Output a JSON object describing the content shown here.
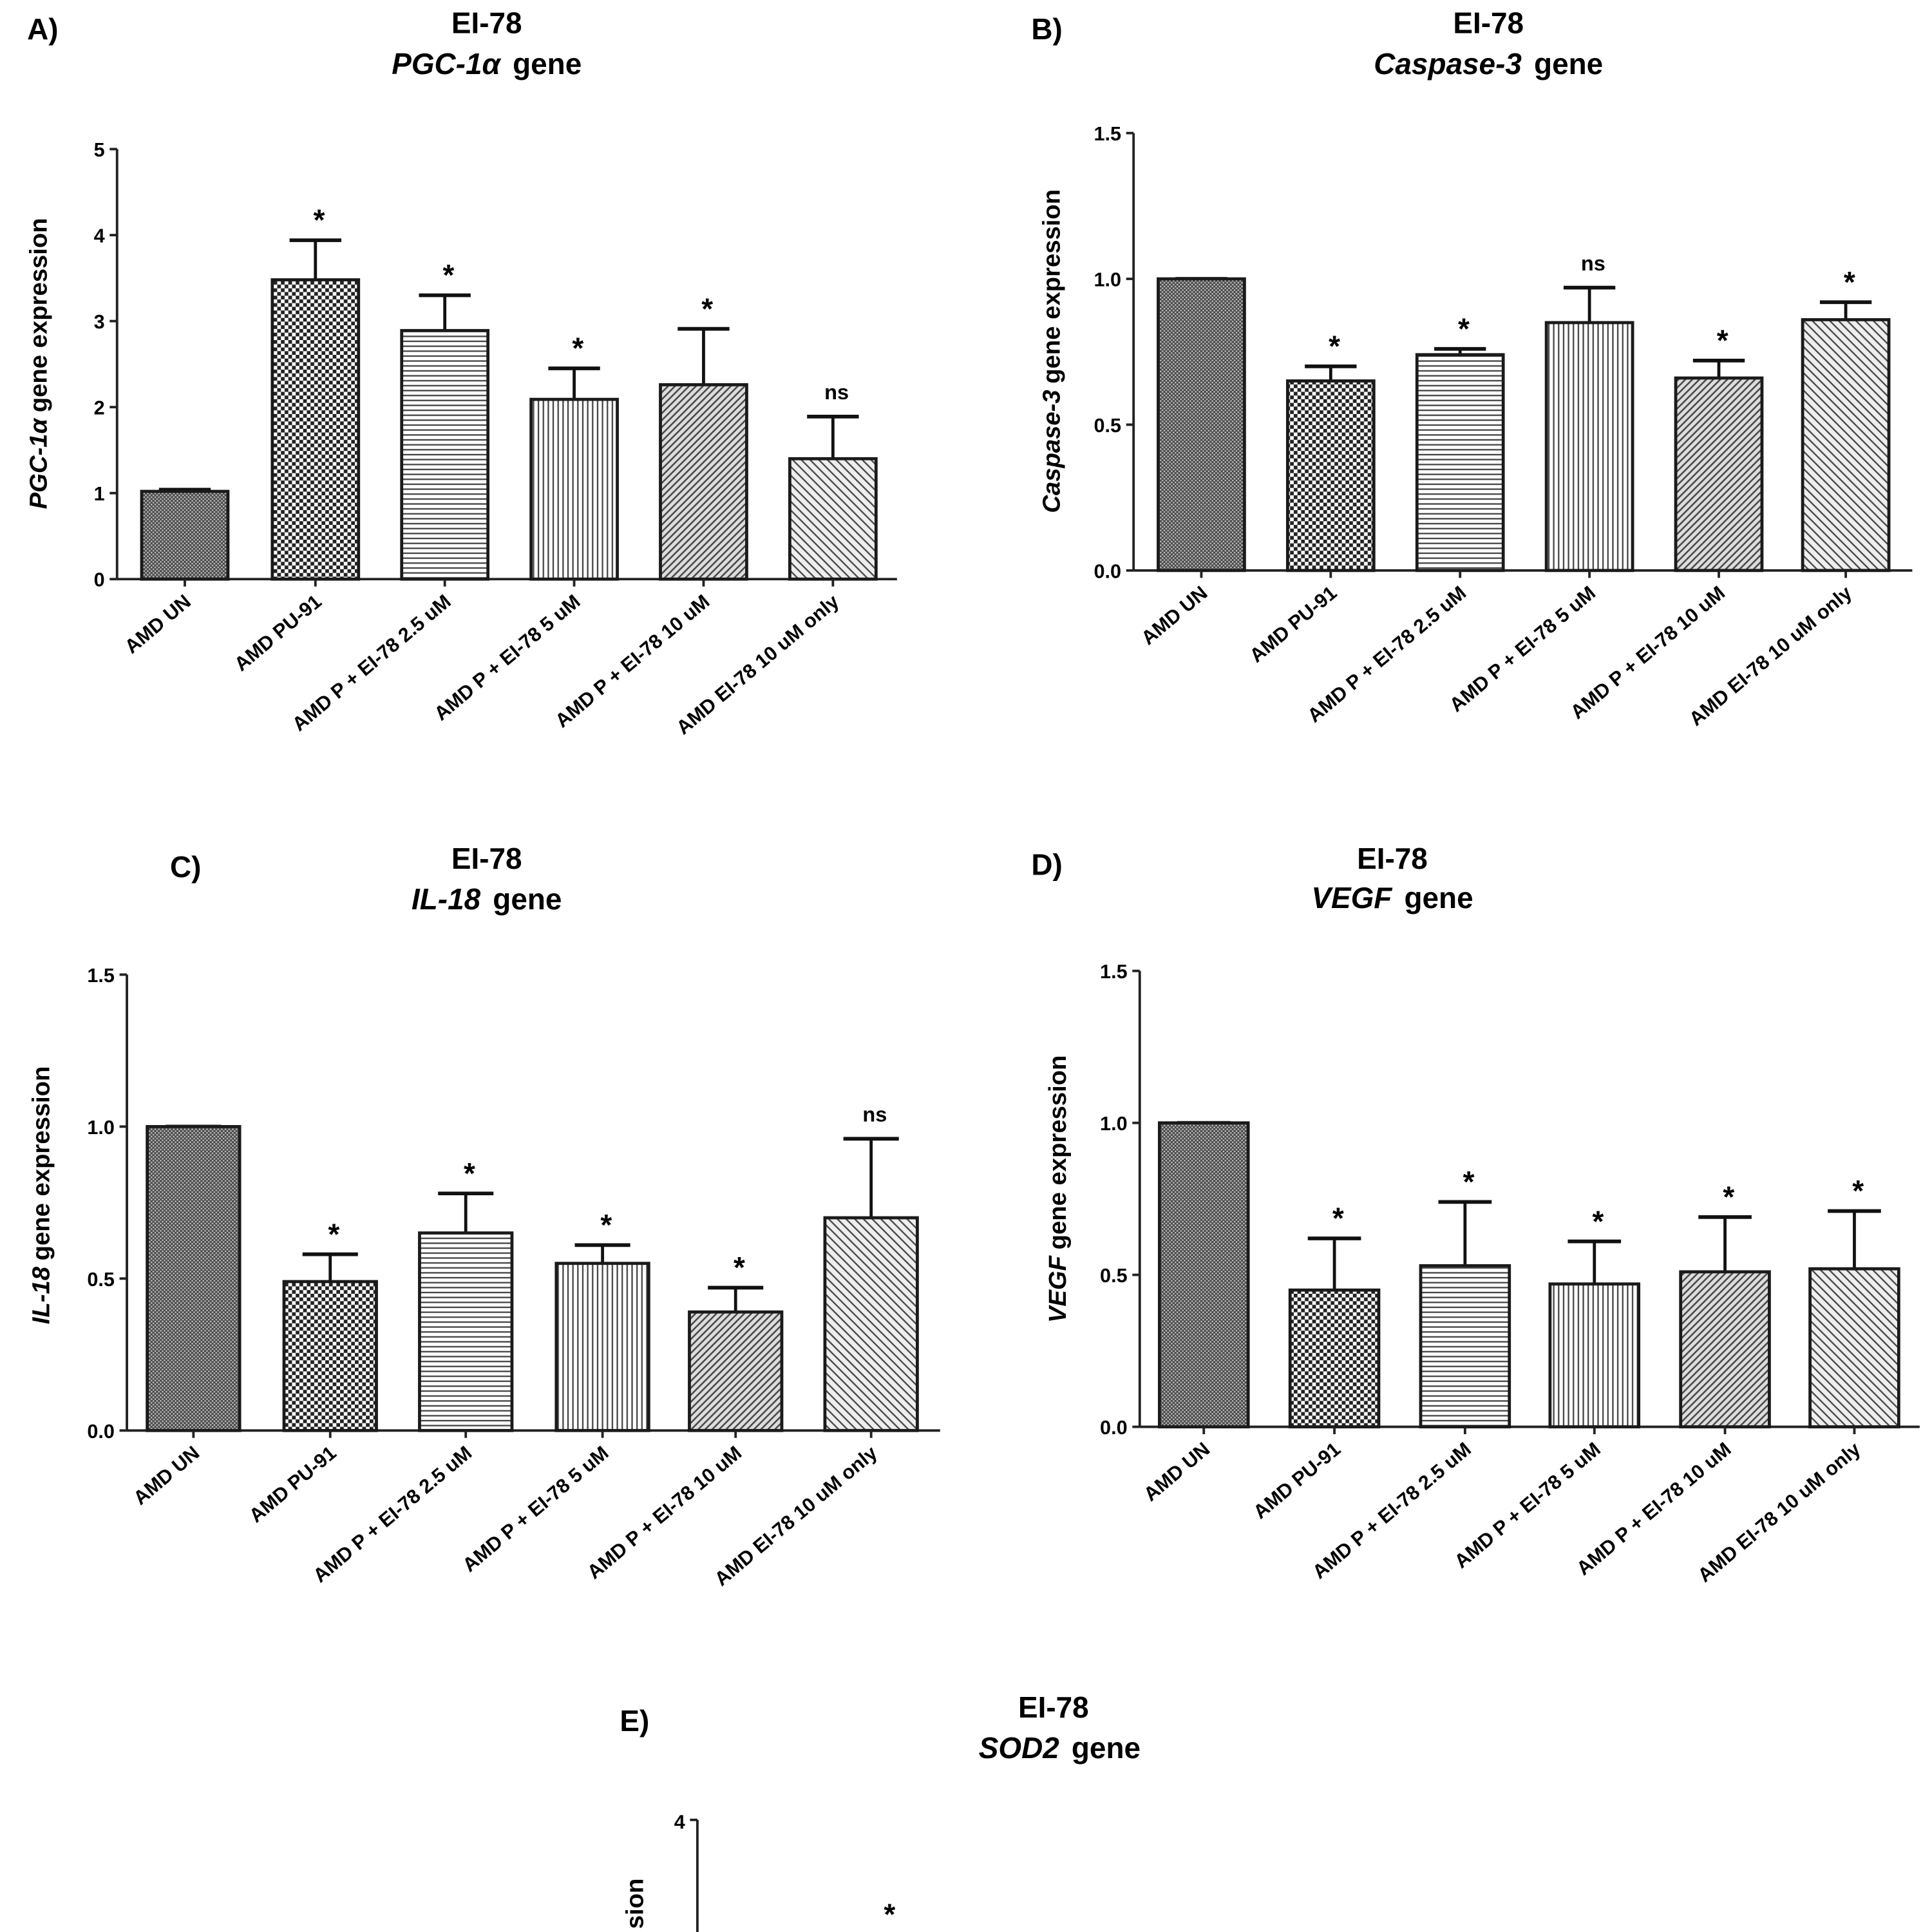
{
  "chart_data": [
    {
      "panel_label": "A)",
      "type": "bar",
      "title": "EI-78",
      "subtitle_gene": "PGC-1α",
      "subtitle_rest": "gene",
      "ylabel_gene": "PGC-1α",
      "ylabel_rest": "gene expression",
      "ylim": [
        0,
        5
      ],
      "yticks": [
        "0",
        "1",
        "2",
        "3",
        "4",
        "5"
      ],
      "grid": false,
      "categories": [
        "AMD UN",
        "AMD PU-91",
        "AMD P + EI-78 2.5 uM",
        "AMD P + EI-78 5 uM",
        "AMD P + EI-78 10 uM",
        "AMD EI-78 10 uM only"
      ],
      "values": [
        1.02,
        3.48,
        2.89,
        2.09,
        2.26,
        1.4
      ],
      "error_upper": [
        1.04,
        3.94,
        3.3,
        2.45,
        2.91,
        1.89
      ],
      "annotations": [
        "",
        "*",
        "*",
        "*",
        "*",
        "ns"
      ]
    },
    {
      "panel_label": "B)",
      "type": "bar",
      "title": "EI-78",
      "subtitle_gene": "Caspase-3",
      "subtitle_rest": "gene",
      "ylabel_gene": "Caspase-3",
      "ylabel_rest": "gene expression",
      "ylim": [
        0,
        1.5
      ],
      "yticks": [
        "0.0",
        "0.5",
        "1.0",
        "1.5"
      ],
      "grid": false,
      "categories": [
        "AMD UN",
        "AMD PU-91",
        "AMD P + EI-78 2.5 uM",
        "AMD P + EI-78 5 uM",
        "AMD P + EI-78 10 uM",
        "AMD EI-78 10 uM only"
      ],
      "values": [
        1.0,
        0.65,
        0.74,
        0.85,
        0.66,
        0.86
      ],
      "error_upper": [
        1.0,
        0.7,
        0.76,
        0.97,
        0.72,
        0.92
      ],
      "annotations": [
        "",
        "*",
        "*",
        "ns",
        "*",
        "*"
      ]
    },
    {
      "panel_label": "C)",
      "type": "bar",
      "title": "EI-78",
      "subtitle_gene": "IL-18",
      "subtitle_rest": "gene",
      "ylabel_gene": "IL-18",
      "ylabel_rest": "gene expression",
      "ylim": [
        0,
        1.5
      ],
      "yticks": [
        "0.0",
        "0.5",
        "1.0",
        "1.5"
      ],
      "grid": false,
      "categories": [
        "AMD UN",
        "AMD PU-91",
        "AMD P + EI-78 2.5 uM",
        "AMD P + EI-78 5 uM",
        "AMD P + EI-78 10 uM",
        "AMD EI-78 10 uM only"
      ],
      "values": [
        1.0,
        0.49,
        0.65,
        0.55,
        0.39,
        0.7
      ],
      "error_upper": [
        1.0,
        0.58,
        0.78,
        0.61,
        0.47,
        0.96
      ],
      "annotations": [
        "",
        "*",
        "*",
        "*",
        "*",
        "ns"
      ]
    },
    {
      "panel_label": "D)",
      "type": "bar",
      "title": "EI-78",
      "subtitle_gene": "VEGF",
      "subtitle_rest": "gene",
      "ylabel_gene": "VEGF",
      "ylabel_rest": "gene expression",
      "ylim": [
        0,
        1.5
      ],
      "yticks": [
        "0.0",
        "0.5",
        "1.0",
        "1.5"
      ],
      "grid": false,
      "categories": [
        "AMD UN",
        "AMD PU-91",
        "AMD P + EI-78 2.5 uM",
        "AMD P + EI-78 5 uM",
        "AMD P + EI-78 10 uM",
        "AMD EI-78 10 uM only"
      ],
      "values": [
        1.0,
        0.45,
        0.53,
        0.47,
        0.51,
        0.52
      ],
      "error_upper": [
        1.0,
        0.62,
        0.74,
        0.61,
        0.69,
        0.71
      ],
      "annotations": [
        "",
        "*",
        "*",
        "*",
        "*",
        "*"
      ]
    },
    {
      "panel_label": "E)",
      "type": "bar",
      "title": "EI-78",
      "subtitle_gene": "SOD2",
      "subtitle_rest": "gene",
      "ylabel_visible": "sion",
      "yticks_visible": [
        "4"
      ],
      "annotations_visible": [
        "*"
      ]
    }
  ],
  "colors": {
    "bar_stroke": "#1a1a1a",
    "pattern": "#333333",
    "axis": "#222222"
  }
}
